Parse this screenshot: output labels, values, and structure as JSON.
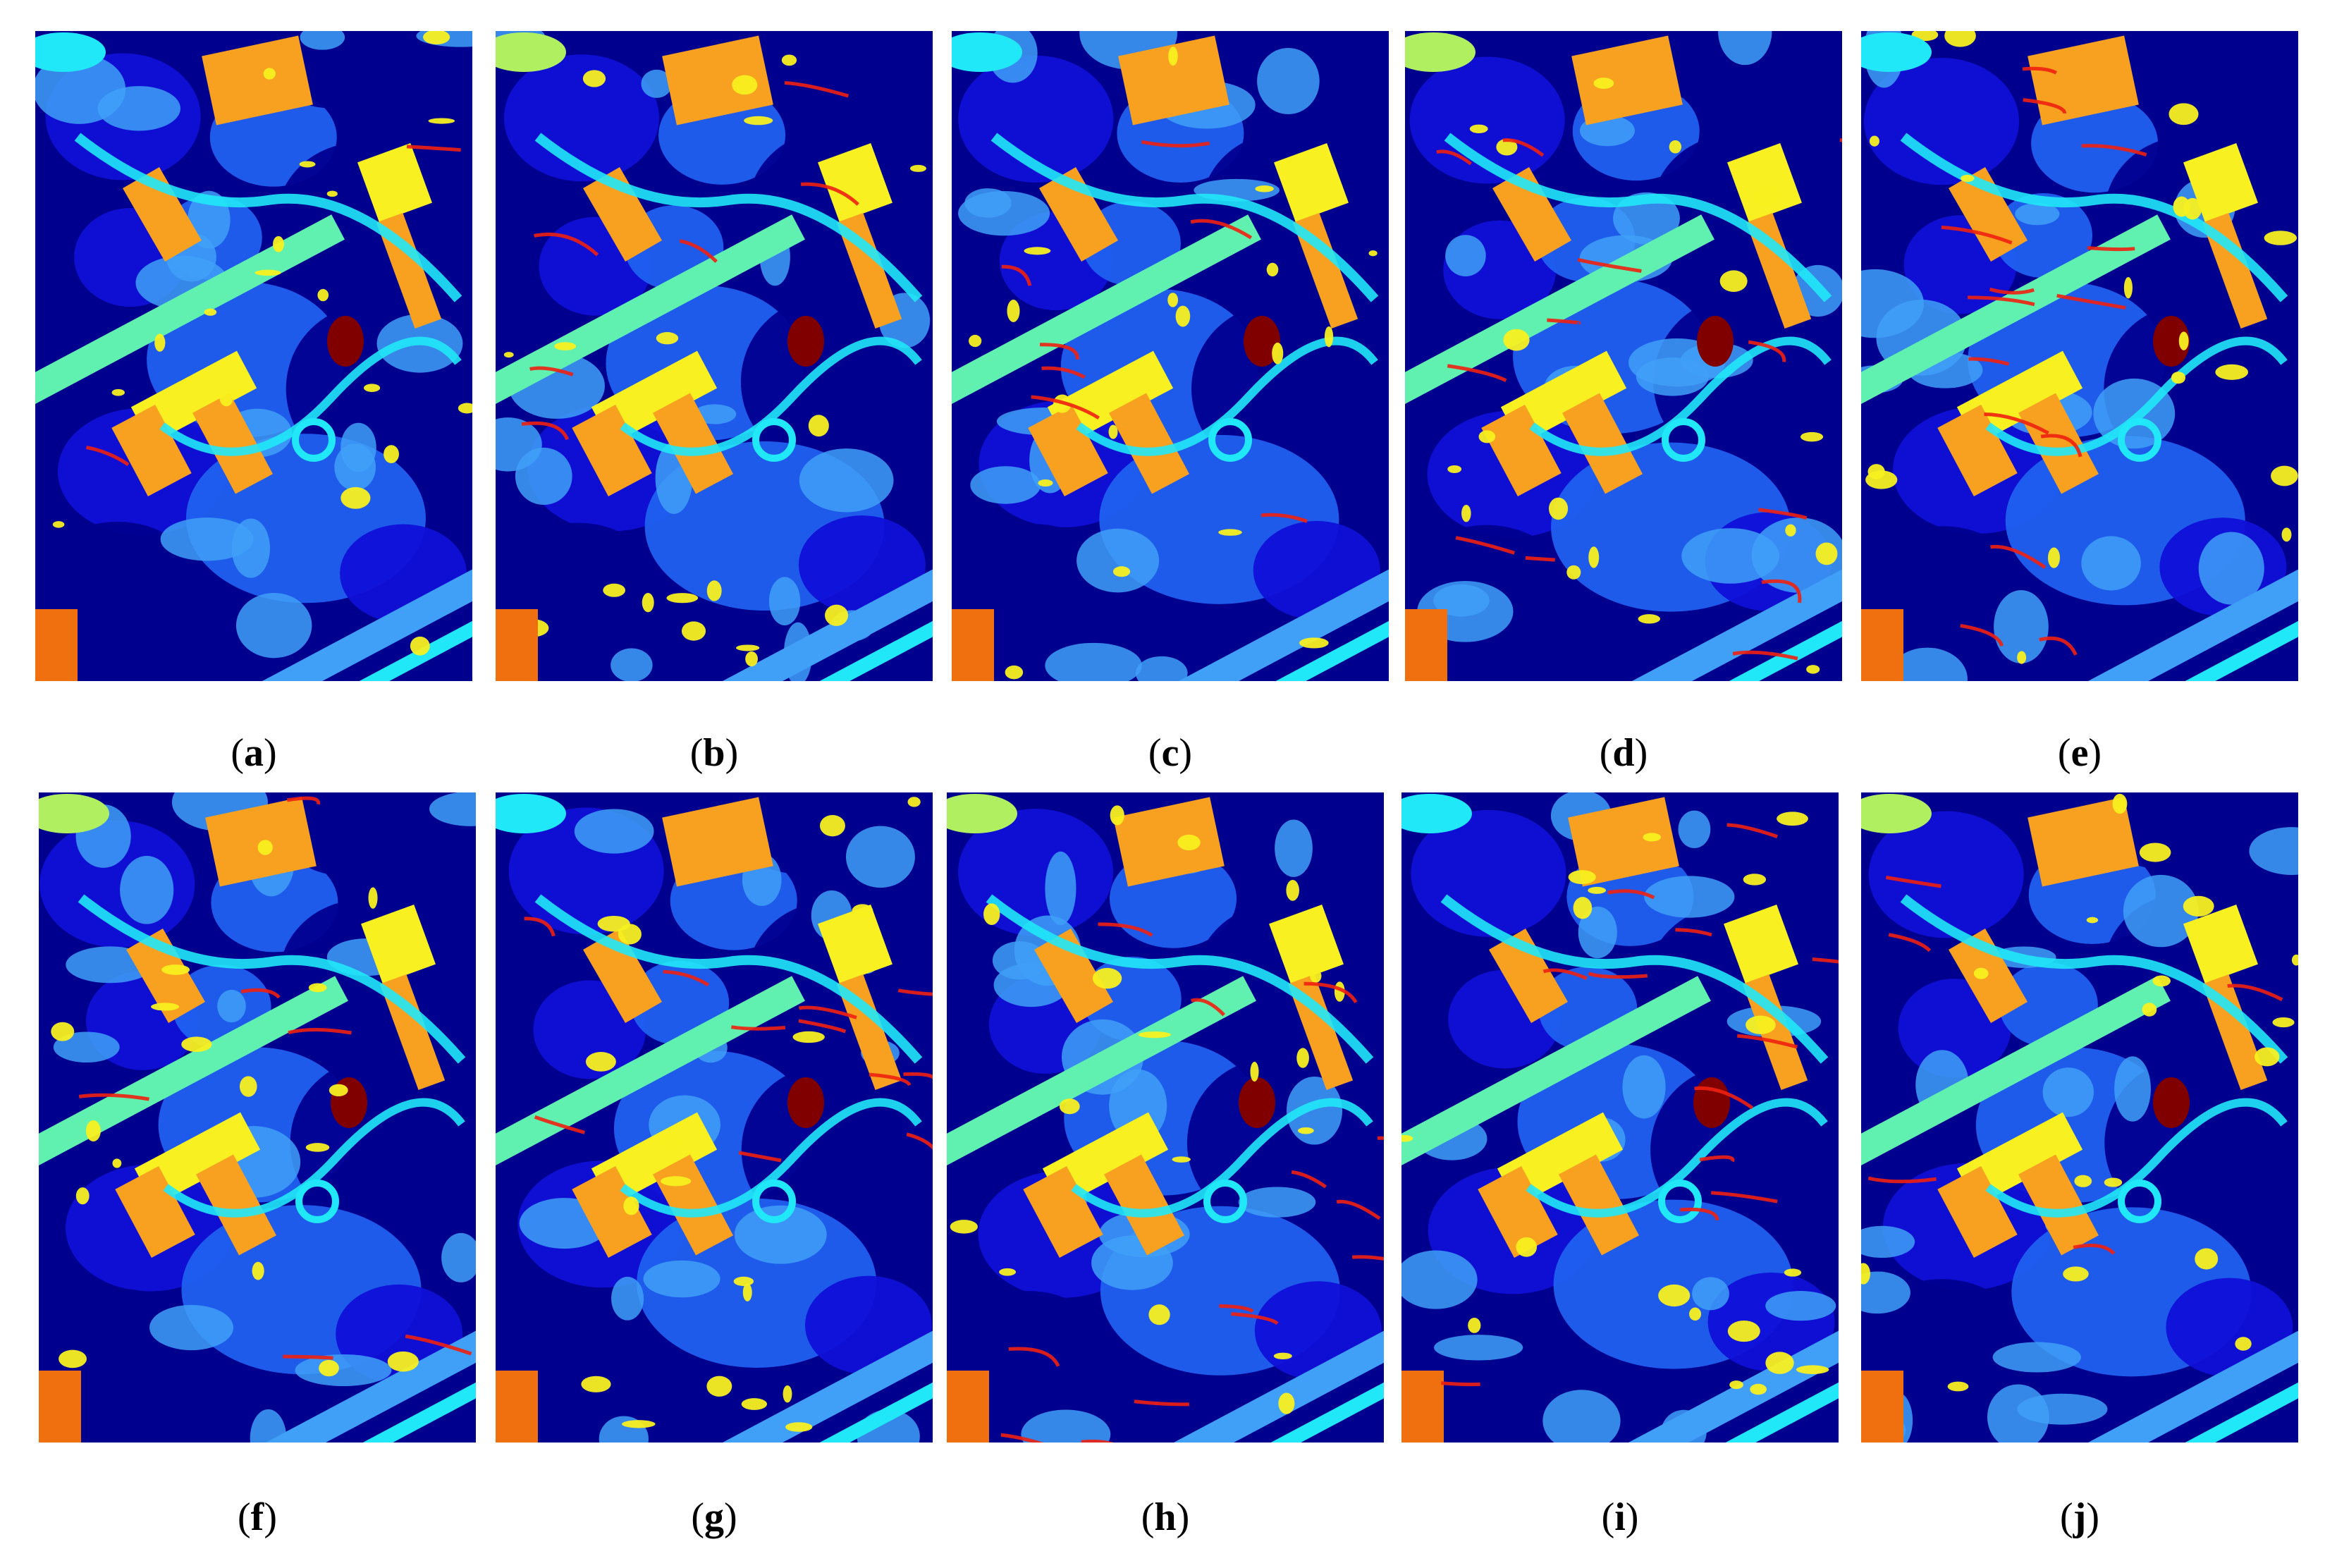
{
  "figure": {
    "panels": [
      {
        "id": "a",
        "label": "a"
      },
      {
        "id": "b",
        "label": "b"
      },
      {
        "id": "c",
        "label": "c"
      },
      {
        "id": "d",
        "label": "d"
      },
      {
        "id": "e",
        "label": "e"
      },
      {
        "id": "f",
        "label": "f"
      },
      {
        "id": "g",
        "label": "g"
      },
      {
        "id": "h",
        "label": "h"
      },
      {
        "id": "i",
        "label": "i"
      },
      {
        "id": "j",
        "label": "j"
      }
    ],
    "colormap": {
      "navy": "#00008f",
      "blue": "#1010d8",
      "mid_blue": "#2060f0",
      "sky": "#40a0f8",
      "cyan": "#20e8f8",
      "aqua_green": "#60f0b0",
      "lime": "#b0f060",
      "yellow": "#f8f020",
      "orange": "#f8a020",
      "dark_orange": "#f07010",
      "red": "#f02010",
      "maroon": "#800000"
    }
  }
}
